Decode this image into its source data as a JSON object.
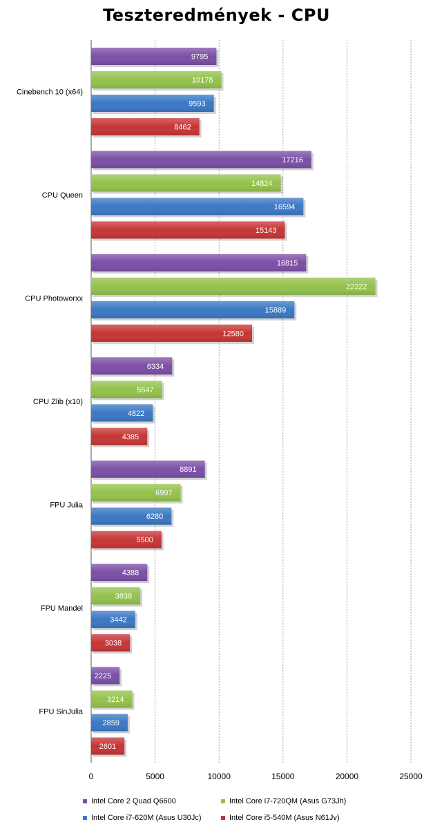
{
  "chart_data": {
    "type": "bar",
    "orientation": "horizontal",
    "title": "Teszteredmények - CPU",
    "categories": [
      "Cinebench 10 (x64)",
      "CPU Queen",
      "CPU Photoworxx",
      "CPU Zlib (x10)",
      "FPU Julia",
      "FPU Mandel",
      "FPU SinJulia"
    ],
    "series": [
      {
        "name": "Intel Core 2 Quad Q6600",
        "color": "#7b4fa6",
        "values": [
          9795,
          17216,
          16815,
          6334,
          8891,
          4388,
          2225
        ]
      },
      {
        "name": "Intel Core i7-720QM (Asus G73Jh)",
        "color": "#93c24c",
        "values": [
          10178,
          14824,
          22222,
          5547,
          6997,
          3838,
          3214
        ]
      },
      {
        "name": "Intel Core i7-620M (Asus U30Jc)",
        "color": "#3b78c4",
        "values": [
          9593,
          16594,
          15889,
          4822,
          6280,
          3442,
          2859
        ]
      },
      {
        "name": "Intel Core i5-540M (Asus N61Jv)",
        "color": "#c63535",
        "values": [
          8462,
          15143,
          12580,
          4385,
          5500,
          3038,
          2601
        ]
      }
    ],
    "xlim": [
      0,
      25000
    ],
    "xticks": [
      "0",
      "5000",
      "10000",
      "15000",
      "20000",
      "25000"
    ],
    "xlabel": "",
    "ylabel": "",
    "grid": true,
    "legend_position": "bottom"
  }
}
